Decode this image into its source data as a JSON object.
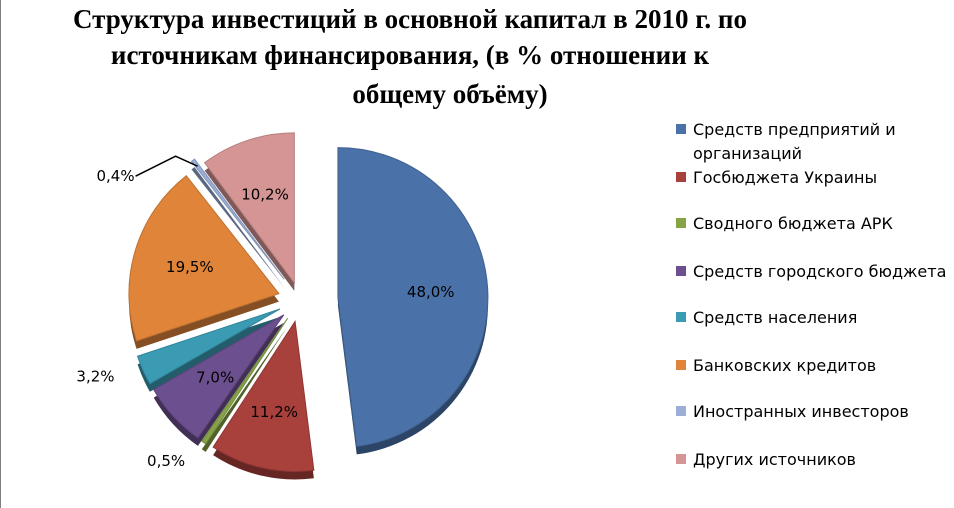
{
  "title": {
    "line1": "Структура инвестиций в основной капитал в 2010 г. по",
    "line2": "источникам финансирования, (в % отношении к",
    "line3": "общему объёму)"
  },
  "chart_data": {
    "type": "pie",
    "title": "Структура инвестиций в основной капитал в 2010 г. по источникам финансирования, (в % отношении к общему объёму)",
    "legend_position": "right",
    "exploded": true,
    "slices": [
      {
        "label": "Средств предприятий и организаций",
        "value": 48.0,
        "value_label": "48,0%",
        "color": "#4a72a8"
      },
      {
        "label": "Госбюджета Украины",
        "value": 11.2,
        "value_label": "11,2%",
        "color": "#a8403c"
      },
      {
        "label": "Сводного бюджета АРК",
        "value": 0.5,
        "value_label": "0,5%",
        "color": "#86a446"
      },
      {
        "label": "Средств городского бюджета",
        "value": 7.0,
        "value_label": "7,0%",
        "color": "#6c4f8e"
      },
      {
        "label": "Средств населения",
        "value": 3.2,
        "value_label": "3,2%",
        "color": "#3a9bb3"
      },
      {
        "label": "Банковских кредитов",
        "value": 19.5,
        "value_label": "19,5%",
        "color": "#e0843a"
      },
      {
        "label": "Иностранных инвесторов",
        "value": 0.4,
        "value_label": "0,4%",
        "color": "#9aaed8"
      },
      {
        "label": "Других источников",
        "value": 10.2,
        "value_label": "10,2%",
        "color": "#d49594"
      }
    ]
  }
}
